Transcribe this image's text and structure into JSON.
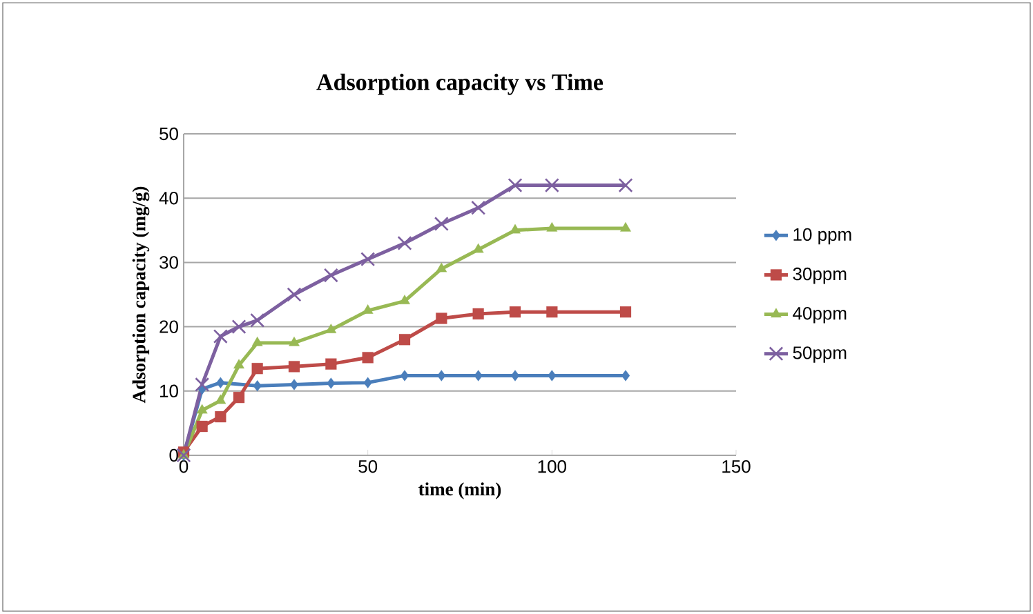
{
  "chart_data": {
    "type": "line",
    "title": "Adsorption capacity vs Time",
    "xlabel": "time (min)",
    "ylabel": "Adsorption capacity (mg/g)",
    "xlim": [
      0,
      150
    ],
    "xticks": [
      0,
      50,
      100,
      150
    ],
    "ylim": [
      0,
      50
    ],
    "yticks": [
      0,
      10,
      20,
      30,
      40,
      50
    ],
    "grid": "y",
    "legend": "right",
    "series": [
      {
        "name": "10 ppm",
        "color": "#4a7ebb",
        "marker": "diamond",
        "x": [
          0,
          5,
          10,
          20,
          30,
          40,
          50,
          60,
          70,
          80,
          90,
          100,
          120
        ],
        "values": [
          0,
          10.3,
          11.3,
          10.8,
          11,
          11.2,
          11.3,
          12.4,
          12.4,
          12.4,
          12.4,
          12.4,
          12.4
        ]
      },
      {
        "name": "30ppm",
        "color": "#be4b48",
        "marker": "square",
        "x": [
          0,
          5,
          10,
          15,
          20,
          30,
          40,
          50,
          60,
          70,
          80,
          90,
          100,
          120
        ],
        "values": [
          0.5,
          4.5,
          6,
          9,
          13.5,
          13.8,
          14.2,
          15.2,
          18,
          21.3,
          22,
          22.3,
          22.3,
          22.3
        ]
      },
      {
        "name": "40ppm",
        "color": "#98b954",
        "marker": "triangle",
        "x": [
          0,
          5,
          10,
          15,
          20,
          30,
          40,
          50,
          60,
          70,
          80,
          90,
          100,
          120
        ],
        "values": [
          0,
          7,
          8.5,
          14,
          17.5,
          17.5,
          19.5,
          22.5,
          24,
          29,
          32,
          35,
          35.3,
          35.3
        ]
      },
      {
        "name": "50ppm",
        "color": "#7d60a0",
        "marker": "cross",
        "x": [
          0,
          5,
          10,
          15,
          20,
          30,
          40,
          50,
          60,
          70,
          80,
          90,
          100,
          120
        ],
        "values": [
          0,
          11,
          18.5,
          20,
          21,
          25,
          28,
          30.5,
          33,
          36,
          38.5,
          42,
          42,
          42
        ]
      }
    ]
  }
}
